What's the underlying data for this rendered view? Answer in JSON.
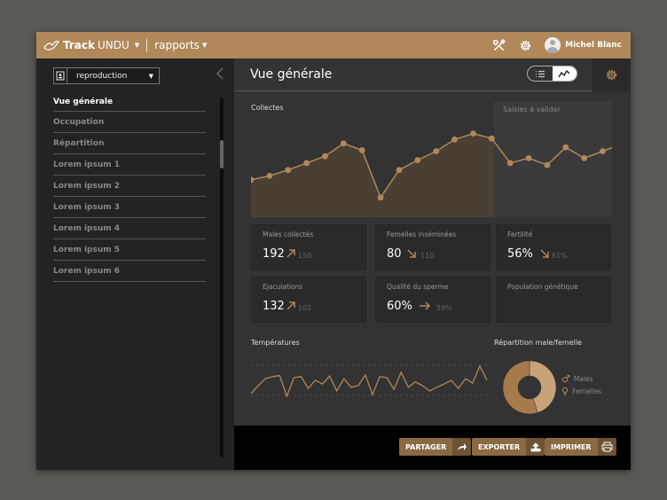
{
  "app": {
    "brand_bold": "Track",
    "brand_rest": "UNDU",
    "section": "rapports",
    "user_name": "Michel Blanc"
  },
  "sidebar": {
    "select_value": "reproduction",
    "items": [
      {
        "label": "Vue générale",
        "active": true
      },
      {
        "label": "Occupation"
      },
      {
        "label": "Répartition"
      },
      {
        "label": "Lorem ipsum 1"
      },
      {
        "label": "Lorem ipsum 2"
      },
      {
        "label": "Lorem ipsum 3"
      },
      {
        "label": "Lorem ipsum 4"
      },
      {
        "label": "Lorem ipsum 5"
      },
      {
        "label": "Lorem ipsum 6"
      }
    ]
  },
  "main": {
    "title": "Vue générale",
    "collectes_label": "Collectes",
    "saisies_label": "Saisies à valider",
    "kpis": [
      {
        "label": "Males collectés",
        "value": "192",
        "previous": "150",
        "trend": "up"
      },
      {
        "label": "Femelles inséminées",
        "value": "80",
        "previous": "110",
        "trend": "down"
      },
      {
        "label": "Fertilité",
        "value": "56%",
        "previous": "61%",
        "trend": "down"
      },
      {
        "label": "Ejaculations",
        "value": "132",
        "previous": "102",
        "trend": "up"
      },
      {
        "label": "Qualité du sperme",
        "value": "60%",
        "previous": "59%",
        "trend": "flat"
      },
      {
        "label": "Population génétique",
        "value": "",
        "previous": "",
        "trend": ""
      }
    ],
    "temperatures_label": "Températures",
    "repartition_label": "Répartition male/femelle",
    "legend_males": "Males",
    "legend_femelles": "Femelles"
  },
  "footer": {
    "share": "PARTAGER",
    "export": "EXPORTER",
    "print": "IMPRIMER"
  },
  "colors": {
    "accent": "#b0885a",
    "dark_accent": "#6e5234",
    "light_accent": "#c9a27a"
  },
  "icons": [
    "bird-logo-icon",
    "tools-icon",
    "gear-icon",
    "avatar-icon",
    "id-badge-icon",
    "chevron-left-icon",
    "list-icon",
    "line-chart-icon",
    "share-icon",
    "export-icon",
    "print-icon",
    "male-icon",
    "female-icon"
  ],
  "chart_data": [
    {
      "type": "area",
      "title": "Collectes",
      "values": [
        38,
        42,
        48,
        55,
        62,
        75,
        68,
        20,
        48,
        58,
        67,
        79,
        85,
        80,
        55,
        60,
        53,
        71,
        60,
        67
      ],
      "validated_points": 14
    },
    {
      "type": "line",
      "title": "Températures",
      "values": [
        30,
        45,
        58,
        62,
        64,
        25,
        60,
        62,
        40,
        55,
        48,
        63,
        35,
        58,
        42,
        45,
        65,
        28,
        62,
        60,
        38,
        70,
        42,
        52,
        45,
        35,
        42,
        48,
        55,
        40,
        58,
        50,
        82,
        55
      ]
    },
    {
      "type": "pie",
      "title": "Répartition male/femelle",
      "series": [
        {
          "name": "Males",
          "value": 45
        },
        {
          "name": "Femelles",
          "value": 55
        }
      ]
    }
  ]
}
